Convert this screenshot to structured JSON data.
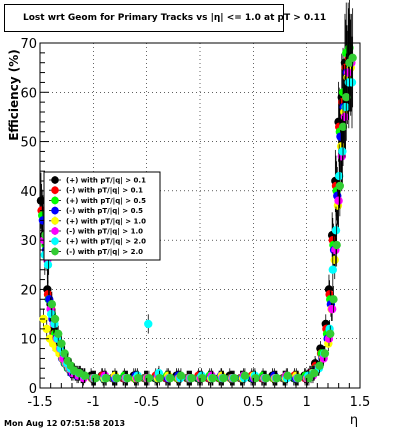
{
  "chart_data": {
    "type": "scatter",
    "title": "Lost wrt Geom for Primary Tracks vs |η| <= 1.0 at pT > 0.11",
    "xlabel": "η",
    "ylabel": "Efficiency (%)",
    "xlim": [
      -1.5,
      1.5
    ],
    "ylim": [
      0,
      70
    ],
    "x_ticks": [
      "-1.5",
      "-1",
      "-0.5",
      "0",
      "0.5",
      "1",
      "1.5"
    ],
    "y_ticks": [
      "0",
      "10",
      "20",
      "30",
      "40",
      "50",
      "60",
      "70"
    ],
    "grid": true,
    "legend_position": "left-middle",
    "x": [
      -1.47,
      -1.44,
      -1.41,
      -1.38,
      -1.35,
      -1.32,
      -1.29,
      -1.26,
      -1.23,
      -1.2,
      -1.15,
      -1.1,
      -1.0,
      -0.9,
      -0.8,
      -0.7,
      -0.6,
      -0.5,
      -0.4,
      -0.3,
      -0.2,
      -0.1,
      0.0,
      0.1,
      0.2,
      0.3,
      0.4,
      0.5,
      0.6,
      0.7,
      0.8,
      0.9,
      1.0,
      1.05,
      1.1,
      1.15,
      1.2,
      1.23,
      1.26,
      1.29,
      1.32,
      1.35,
      1.38,
      1.41
    ],
    "series": [
      {
        "name": "(+) with pT/|q| > 0.1",
        "color": "#000000",
        "values": [
          38,
          31,
          20,
          17,
          12,
          10,
          8,
          6,
          5,
          4,
          3,
          3,
          2.5,
          2.5,
          2,
          2,
          2.5,
          2,
          2,
          2,
          2.5,
          2,
          2,
          2,
          2,
          2.5,
          2,
          2,
          2,
          2.5,
          2,
          2,
          2.5,
          3,
          5,
          8,
          13,
          20,
          31,
          42,
          54,
          59,
          66,
          68
        ]
      },
      {
        "name": "(-) with pT/|q| > 0.1",
        "color": "#ff0000",
        "values": [
          36,
          30,
          19,
          16,
          11,
          9,
          7,
          5.5,
          4.5,
          3.5,
          3,
          2.5,
          2,
          2.5,
          2,
          2,
          2,
          2,
          2.5,
          2,
          2,
          2,
          2.5,
          2,
          2,
          2,
          2,
          2.5,
          2,
          2,
          2,
          2.5,
          2,
          3,
          4.5,
          7,
          12,
          19,
          30,
          41,
          53,
          58,
          65,
          67
        ]
      },
      {
        "name": "(+) with pT/|q| > 0.5",
        "color": "#00ff00",
        "values": [
          35,
          29,
          18,
          15,
          11,
          9,
          7,
          5,
          4,
          3.5,
          3,
          2.5,
          2,
          2,
          2,
          2.5,
          2,
          2,
          2,
          2.5,
          2,
          2,
          2,
          2.5,
          2,
          2,
          2,
          2,
          2.5,
          2,
          2,
          2,
          2.5,
          2.5,
          4,
          7,
          11,
          18,
          29,
          40,
          52,
          60,
          68,
          69
        ]
      },
      {
        "name": "(-) with pT/|q| > 0.5",
        "color": "#0000ff",
        "values": [
          34,
          28,
          18,
          14,
          10,
          8,
          6,
          5,
          4,
          3,
          2.5,
          2.5,
          2,
          2,
          2,
          2,
          2.5,
          2,
          2,
          2,
          2.5,
          2,
          2,
          2,
          2.5,
          2,
          2,
          2,
          2,
          2.5,
          2,
          2,
          2,
          3,
          4,
          6,
          10,
          17,
          28,
          39,
          51,
          57,
          64,
          66
        ]
      },
      {
        "name": "(+) with pT/|q| > 1.0",
        "color": "#ffff00",
        "values": [
          14,
          12,
          10,
          9,
          8,
          7,
          6,
          5,
          4,
          3.5,
          3,
          2.5,
          2,
          2,
          2.5,
          2,
          2,
          2,
          2,
          2.5,
          2,
          2,
          2,
          2,
          2.5,
          2,
          2,
          2.5,
          2,
          2,
          2,
          2.5,
          2,
          3,
          4,
          6,
          9,
          16,
          26,
          37,
          49,
          56,
          63,
          65
        ]
      },
      {
        "name": "(-) with pT/|q| > 1.0",
        "color": "#ff00ff",
        "values": [
          30,
          26,
          16,
          13,
          10,
          8,
          6,
          5,
          4,
          3,
          2.5,
          2,
          2,
          2.5,
          2,
          2,
          2,
          2,
          2.5,
          2,
          2,
          2,
          2,
          2.5,
          2,
          2,
          2.5,
          2,
          2,
          2,
          2.5,
          2,
          2,
          2.5,
          4,
          6,
          10,
          16,
          28,
          38,
          47,
          55,
          64,
          66
        ]
      },
      {
        "name": "(+) with pT/|q| > 2.0",
        "color": "#00ffff",
        "values": [
          27,
          25,
          15,
          13,
          10,
          8,
          7,
          5,
          4,
          3.5,
          3,
          2.5,
          2,
          2,
          2,
          2,
          2.5,
          13,
          3,
          2,
          2,
          2,
          2.5,
          2,
          2,
          2,
          2,
          2.5,
          2,
          2,
          2,
          2,
          2.5,
          3,
          4,
          7,
          12,
          24,
          32,
          43,
          48,
          57,
          62,
          62
        ]
      },
      {
        "name": "(-) with pT/|q| > 2.0",
        "color": "#33cc33",
        "values": [
          31,
          27,
          17,
          14,
          11,
          9,
          7,
          5.5,
          4.5,
          3.5,
          3,
          2.5,
          2,
          2,
          2,
          2,
          2,
          2,
          2,
          2,
          2.5,
          2,
          2,
          2,
          2,
          2,
          2.5,
          2,
          2,
          2,
          2.5,
          2,
          2,
          3,
          4.5,
          7,
          11,
          18,
          29,
          41,
          53,
          59,
          66,
          67
        ]
      }
    ]
  },
  "timestamp": "Mon Aug 12 07:51:58 2013"
}
